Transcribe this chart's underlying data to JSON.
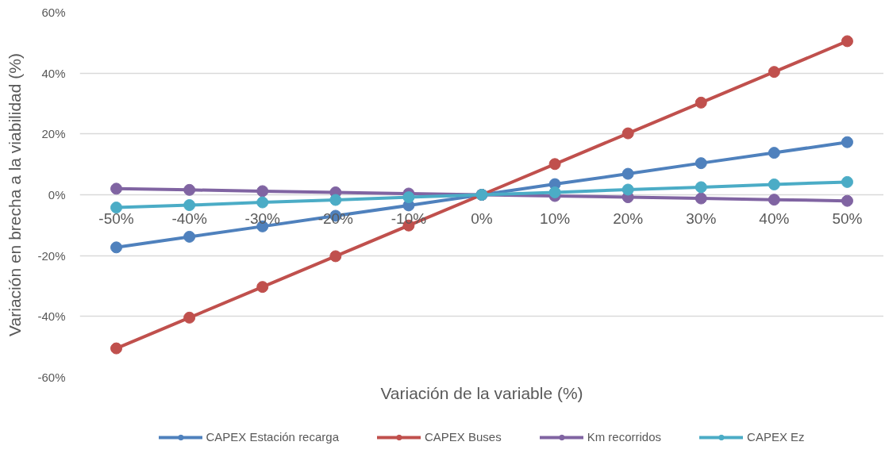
{
  "chart_data": {
    "type": "line",
    "xlabel": "Variación de la variable (%)",
    "ylabel": "Variación en brecha a la viabilidad (%)",
    "categories": [
      "-50%",
      "-40%",
      "-30%",
      "-20%",
      "-10%",
      "0%",
      "10%",
      "20%",
      "30%",
      "40%",
      "50%"
    ],
    "ylim": [
      -60,
      60
    ],
    "yticks": [
      {
        "value": -60,
        "label": "-60%"
      },
      {
        "value": -40,
        "label": "-40%"
      },
      {
        "value": -20,
        "label": "-20%"
      },
      {
        "value": 0,
        "label": "0%"
      },
      {
        "value": 20,
        "label": "20%"
      },
      {
        "value": 40,
        "label": "40%"
      },
      {
        "value": 60,
        "label": "60%"
      }
    ],
    "series": [
      {
        "name": "CAPEX Estación recarga",
        "color": "#4f81bd",
        "values": [
          -17.3,
          -13.8,
          -10.4,
          -6.9,
          -3.5,
          0,
          3.5,
          6.9,
          10.4,
          13.8,
          17.3
        ]
      },
      {
        "name": "CAPEX Buses",
        "color": "#c0504d",
        "values": [
          -50.5,
          -40.4,
          -30.3,
          -20.2,
          -10.1,
          0,
          10.1,
          20.2,
          30.3,
          40.4,
          50.5
        ]
      },
      {
        "name": "Km recorridos",
        "color": "#8064a2",
        "values": [
          2.0,
          1.6,
          1.2,
          0.8,
          0.4,
          0,
          -0.4,
          -0.8,
          -1.2,
          -1.6,
          -2.0
        ]
      },
      {
        "name": "CAPEX Ez",
        "color": "#4bacc6",
        "values": [
          -4.2,
          -3.4,
          -2.5,
          -1.7,
          -0.8,
          0,
          0.8,
          1.7,
          2.5,
          3.4,
          4.2
        ]
      }
    ],
    "grid": "y",
    "legend": "bottom",
    "marker": "circle",
    "line_style": "solid"
  }
}
